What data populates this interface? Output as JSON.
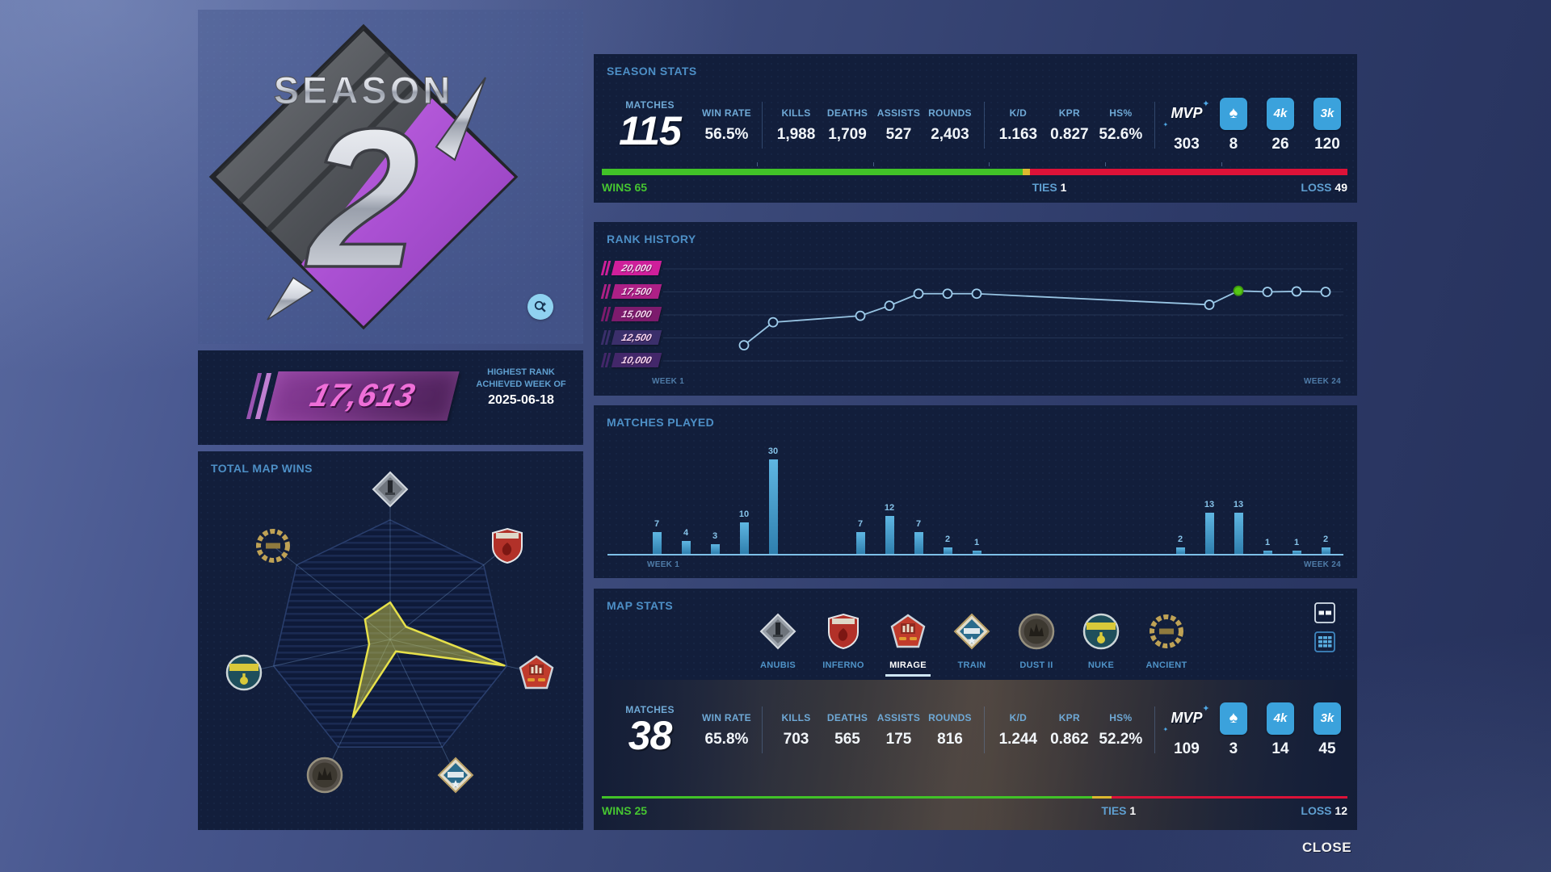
{
  "window": {
    "close_label": "CLOSE"
  },
  "colors": {
    "win_green": "#41c228",
    "tie_yellow": "#dcb92f",
    "loss_red": "#dc1238",
    "award_blue": "#3ba2dc",
    "accent_blue": "#4d8fc6",
    "line_blue": "#9fcdec",
    "highlight_green": "#55c813",
    "radar_yellow": "#e6e04a"
  },
  "season_badge": {
    "title": "SEASON",
    "number": "2"
  },
  "highest_rank": {
    "value": "17,613",
    "caption_line1": "HIGHEST RANK",
    "caption_line2": "ACHIEVED WEEK OF",
    "date": "2025-06-18"
  },
  "total_map_wins": {
    "title": "TOTAL MAP WINS",
    "chart_data": {
      "type": "radar",
      "categories": [
        "ANUBIS",
        "INFERNO",
        "MIRAGE",
        "TRAIN",
        "DUST II",
        "NUKE",
        "ANCIENT"
      ],
      "values_relative": [
        0.31,
        0.17,
        0.98,
        0.11,
        0.72,
        0.18,
        0.27
      ],
      "max_map": "MIRAGE"
    }
  },
  "season_stats": {
    "title": "SEASON STATS",
    "matches_label": "MATCHES",
    "matches_value": "115",
    "stats": [
      {
        "label": "WIN RATE",
        "value": "56.5%"
      },
      {
        "label": "KILLS",
        "value": "1,988",
        "divider_before": true
      },
      {
        "label": "DEATHS",
        "value": "1,709"
      },
      {
        "label": "ASSISTS",
        "value": "527"
      },
      {
        "label": "ROUNDS",
        "value": "2,403"
      },
      {
        "label": "K/D",
        "value": "1.163",
        "divider_before": true
      },
      {
        "label": "KPR",
        "value": "0.827"
      },
      {
        "label": "HS%",
        "value": "52.6%"
      }
    ],
    "awards": {
      "mvp_label": "MVP",
      "mvp_value": "303",
      "ace_value": "8",
      "fourk_label": "4k",
      "fourk_value": "26",
      "threek_label": "3k",
      "threek_value": "120"
    },
    "result_bar": {
      "wins_label": "WINS",
      "wins_value": "65",
      "ties_label": "TIES",
      "ties_value": "1",
      "loss_label": "LOSS",
      "loss_value": "49",
      "wins_pct": 56.5,
      "ties_pct": 0.9,
      "loss_pct": 42.6
    }
  },
  "rank_history": {
    "title": "RANK HISTORY",
    "x_start_label": "WEEK 1",
    "x_end_label": "WEEK 24",
    "levels": [
      {
        "label": "20,000",
        "bg": "#cf1f9b"
      },
      {
        "label": "17,500",
        "bg": "#ad2086"
      },
      {
        "label": "15,000",
        "bg": "#7d1b6d"
      },
      {
        "label": "12,500",
        "bg": "#3b2f6b"
      },
      {
        "label": "10,000",
        "bg": "#43276a"
      }
    ],
    "chart_data": {
      "type": "line",
      "x_weeks": [
        4,
        5,
        8,
        9,
        10,
        11,
        12,
        20,
        21,
        22,
        23,
        24
      ],
      "ratings": [
        11700,
        14200,
        14900,
        16000,
        17300,
        17300,
        17300,
        16100,
        17613,
        17500,
        17550,
        17500
      ],
      "highlight_week": 21,
      "ylim": [
        10000,
        20000
      ],
      "xlim": [
        1,
        24
      ]
    }
  },
  "matches_played": {
    "title": "MATCHES PLAYED",
    "x_start_label": "WEEK 1",
    "x_end_label": "WEEK 24",
    "chart_data": {
      "type": "bar",
      "x_weeks": [
        1,
        2,
        3,
        4,
        5,
        8,
        9,
        10,
        11,
        12,
        19,
        20,
        21,
        22,
        23,
        24
      ],
      "values": [
        7,
        4,
        3,
        10,
        30,
        7,
        12,
        7,
        2,
        1,
        2,
        13,
        13,
        1,
        1,
        2
      ],
      "xlim": [
        1,
        24
      ],
      "ylim": [
        0,
        30
      ]
    }
  },
  "map_stats": {
    "title": "MAP STATS",
    "selected_map": "MIRAGE",
    "maps": [
      {
        "name": "ANUBIS",
        "icon": "anubis"
      },
      {
        "name": "INFERNO",
        "icon": "inferno"
      },
      {
        "name": "MIRAGE",
        "icon": "mirage"
      },
      {
        "name": "TRAIN",
        "icon": "train"
      },
      {
        "name": "DUST II",
        "icon": "dust2"
      },
      {
        "name": "NUKE",
        "icon": "nuke"
      },
      {
        "name": "ANCIENT",
        "icon": "ancient"
      }
    ],
    "detail": {
      "matches_label": "MATCHES",
      "matches_value": "38",
      "stats": [
        {
          "label": "WIN RATE",
          "value": "65.8%"
        },
        {
          "label": "KILLS",
          "value": "703",
          "divider_before": true
        },
        {
          "label": "DEATHS",
          "value": "565"
        },
        {
          "label": "ASSISTS",
          "value": "175"
        },
        {
          "label": "ROUNDS",
          "value": "816"
        },
        {
          "label": "K/D",
          "value": "1.244",
          "divider_before": true
        },
        {
          "label": "KPR",
          "value": "0.862"
        },
        {
          "label": "HS%",
          "value": "52.2%"
        }
      ],
      "awards": {
        "mvp_label": "MVP",
        "mvp_value": "109",
        "ace_value": "3",
        "fourk_label": "4k",
        "fourk_value": "14",
        "threek_label": "3k",
        "threek_value": "45"
      },
      "result_bar": {
        "wins_label": "WINS",
        "wins_value": "25",
        "ties_label": "TIES",
        "ties_value": "1",
        "loss_label": "LOSS",
        "loss_value": "12",
        "wins_pct": 65.8,
        "ties_pct": 2.6,
        "loss_pct": 31.6
      }
    }
  }
}
